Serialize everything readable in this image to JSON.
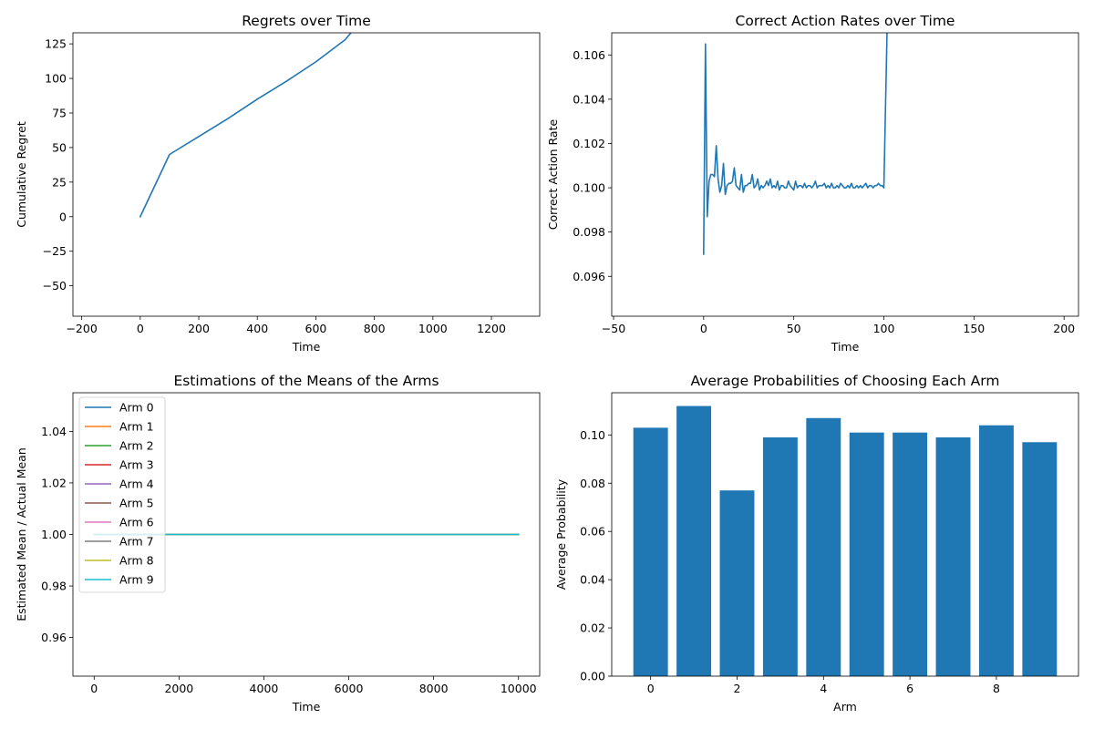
{
  "chart_data": [
    {
      "id": "regret",
      "type": "line",
      "title": "Regrets over Time",
      "xlabel": "Time",
      "ylabel": "Cumulative Regret",
      "xlim": [
        -230,
        1365
      ],
      "ylim": [
        -72,
        133
      ],
      "xticks": [
        -200,
        0,
        200,
        400,
        600,
        800,
        1000,
        1200
      ],
      "yticks": [
        -50,
        -25,
        0,
        25,
        50,
        75,
        100,
        125
      ],
      "series": [
        {
          "color": "#1f77b4",
          "x": [
            0,
            100,
            200,
            300,
            400,
            500,
            600,
            650,
            700,
            720
          ],
          "y": [
            0,
            45,
            58,
            71,
            85,
            98,
            112,
            120,
            128,
            133
          ]
        }
      ],
      "grid": false
    },
    {
      "id": "correct-rate",
      "type": "line",
      "title": "Correct Action Rates over Time",
      "xlabel": "Time",
      "ylabel": "Correct Action Rate",
      "xlim": [
        -51,
        208
      ],
      "ylim": [
        0.0942,
        0.107
      ],
      "xticks": [
        -50,
        0,
        50,
        100,
        150,
        200
      ],
      "yticks": [
        0.096,
        0.098,
        0.1,
        0.102,
        0.104,
        0.106
      ],
      "series": [
        {
          "color": "#1f77b4",
          "x": [
            0,
            1,
            2,
            3,
            4,
            5,
            6,
            7,
            8,
            9,
            10,
            11,
            12,
            13,
            14,
            15,
            16,
            17,
            18,
            19,
            20,
            21,
            22,
            23,
            24,
            25,
            26,
            27,
            28,
            29,
            30,
            31,
            32,
            33,
            34,
            35,
            36,
            37,
            38,
            39,
            40,
            41,
            42,
            43,
            44,
            45,
            46,
            47,
            48,
            49,
            50,
            51,
            52,
            53,
            54,
            55,
            56,
            57,
            58,
            59,
            60,
            61,
            62,
            63,
            64,
            65,
            66,
            67,
            68,
            69,
            70,
            71,
            72,
            73,
            74,
            75,
            76,
            77,
            78,
            79,
            80,
            81,
            82,
            83,
            84,
            85,
            86,
            87,
            88,
            89,
            90,
            91,
            92,
            93,
            94,
            95,
            96,
            97,
            98,
            99,
            100,
            101,
            102
          ],
          "y": [
            0.097,
            0.1065,
            0.0987,
            0.1003,
            0.1006,
            0.1006,
            0.1005,
            0.1019,
            0.1004,
            0.0998,
            0.1001,
            0.1011,
            0.0997,
            0.1001,
            0.1002,
            0.1002,
            0.1003,
            0.1009,
            0.1001,
            0.1,
            0.0999,
            0.1006,
            0.0998,
            0.1001,
            0.1001,
            0.1002,
            0.1002,
            0.1006,
            0.1,
            0.1001,
            0.1004,
            0.0999,
            0.1001,
            0.1,
            0.1001,
            0.1003,
            0.1001,
            0.1004,
            0.1,
            0.1001,
            0.1,
            0.1003,
            0.0999,
            0.1001,
            0.1001,
            0.1,
            0.1,
            0.1003,
            0.1001,
            0.1,
            0.0999,
            0.1003,
            0.1,
            0.1001,
            0.1001,
            0.1,
            0.1002,
            0.1,
            0.1001,
            0.1001,
            0.1,
            0.1001,
            0.1003,
            0.1,
            0.1001,
            0.1001,
            0.1001,
            0.1002,
            0.1,
            0.1001,
            0.1,
            0.1002,
            0.1,
            0.1,
            0.1001,
            0.1,
            0.1002,
            0.1001,
            0.1,
            0.1,
            0.1001,
            0.1,
            0.1002,
            0.1,
            0.1,
            0.1001,
            0.1,
            0.1001,
            0.1,
            0.1001,
            0.1002,
            0.1,
            0.1001,
            0.1001,
            0.1,
            0.1001,
            0.1001,
            0.1002,
            0.1001,
            0.1001,
            0.1,
            0.104,
            0.108
          ]
        }
      ],
      "grid": false
    },
    {
      "id": "estimations",
      "type": "line",
      "title": "Estimations of the Means of the Arms",
      "xlabel": "Time",
      "ylabel": "Estimated Mean / Actual Mean",
      "xlim": [
        -500,
        10500
      ],
      "ylim": [
        0.945,
        1.055
      ],
      "xticks": [
        0,
        2000,
        4000,
        6000,
        8000,
        10000
      ],
      "yticks": [
        0.96,
        0.98,
        1.0,
        1.02,
        1.04
      ],
      "series": [
        {
          "name": "Arm 0",
          "color": "#1f77b4",
          "x": [
            0,
            10000
          ],
          "y": [
            1.0,
            1.0
          ]
        },
        {
          "name": "Arm 1",
          "color": "#ff7f0e",
          "x": [
            0,
            10000
          ],
          "y": [
            1.0,
            1.0
          ]
        },
        {
          "name": "Arm 2",
          "color": "#2ca02c",
          "x": [
            0,
            10000
          ],
          "y": [
            1.0,
            1.0
          ]
        },
        {
          "name": "Arm 3",
          "color": "#d62728",
          "x": [
            0,
            10000
          ],
          "y": [
            1.0,
            1.0
          ]
        },
        {
          "name": "Arm 4",
          "color": "#9467bd",
          "x": [
            0,
            10000
          ],
          "y": [
            1.0,
            1.0
          ]
        },
        {
          "name": "Arm 5",
          "color": "#8c564b",
          "x": [
            0,
            10000
          ],
          "y": [
            1.0,
            1.0
          ]
        },
        {
          "name": "Arm 6",
          "color": "#e377c2",
          "x": [
            0,
            10000
          ],
          "y": [
            1.0,
            1.0
          ]
        },
        {
          "name": "Arm 7",
          "color": "#7f7f7f",
          "x": [
            0,
            10000
          ],
          "y": [
            1.0,
            1.0
          ]
        },
        {
          "name": "Arm 8",
          "color": "#bcbd22",
          "x": [
            0,
            10000
          ],
          "y": [
            1.0,
            1.0
          ]
        },
        {
          "name": "Arm 9",
          "color": "#17becf",
          "x": [
            0,
            10000
          ],
          "y": [
            1.0,
            1.0
          ]
        }
      ],
      "legend": "upper-left",
      "grid": false
    },
    {
      "id": "probabilities",
      "type": "bar",
      "title": "Average Probabilities of Choosing Each Arm",
      "xlabel": "Arm",
      "ylabel": "Average Probability",
      "xlim": [
        -0.9,
        9.9
      ],
      "ylim": [
        0,
        0.1175
      ],
      "xticks": [
        0,
        2,
        4,
        6,
        8
      ],
      "yticks": [
        0.0,
        0.02,
        0.04,
        0.06,
        0.08,
        0.1
      ],
      "categories": [
        0,
        1,
        2,
        3,
        4,
        5,
        6,
        7,
        8,
        9
      ],
      "values": [
        0.103,
        0.112,
        0.077,
        0.099,
        0.107,
        0.101,
        0.101,
        0.099,
        0.104,
        0.097
      ],
      "bar_color": "#1f77b4",
      "grid": false
    }
  ]
}
